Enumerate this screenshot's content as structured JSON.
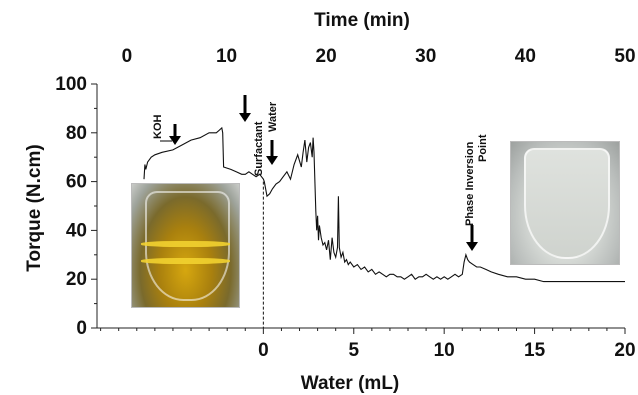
{
  "chart_data": {
    "type": "line",
    "title": "",
    "xlabel": "Water (mL)",
    "ylabel": "Torque (N.cm)",
    "x2label": "Time (min)",
    "xlim": [
      -9.2,
      20
    ],
    "ylim": [
      0,
      100
    ],
    "x2lim": [
      -3,
      50
    ],
    "x_ticks": [
      "0",
      "5",
      "10",
      "15",
      "20"
    ],
    "y_ticks": [
      "0",
      "20",
      "40",
      "60",
      "80",
      "100"
    ],
    "x2_ticks": [
      "0",
      "10",
      "20",
      "30",
      "40",
      "50"
    ],
    "series": [
      {
        "name": "",
        "x": [
          -6.6,
          -6.55,
          -6.5,
          -6.4,
          -6.2,
          -6.0,
          -5.6,
          -5.0,
          -4.5,
          -4.0,
          -3.5,
          -3.0,
          -2.8,
          -2.6,
          -2.45,
          -2.3,
          -2.25,
          -2.2,
          -1.8,
          -1.5,
          -1.2,
          -1.0,
          -0.8,
          -0.6,
          -0.4,
          -0.2,
          -0.1,
          0.0,
          0.05,
          0.1,
          0.2,
          0.35,
          0.5,
          0.7,
          0.9,
          1.1,
          1.3,
          1.5,
          1.7,
          1.9,
          2.1,
          2.2,
          2.3,
          2.4,
          2.5,
          2.6,
          2.7,
          2.75,
          2.8,
          2.85,
          2.9,
          2.95,
          3.0,
          3.05,
          3.1,
          3.2,
          3.3,
          3.4,
          3.5,
          3.6,
          3.7,
          3.8,
          3.9,
          4.0,
          4.1,
          4.15,
          4.2,
          4.3,
          4.4,
          4.5,
          4.6,
          4.7,
          4.8,
          5.0,
          5.2,
          5.4,
          5.6,
          5.8,
          6.0,
          6.2,
          6.4,
          6.6,
          6.8,
          7.0,
          7.2,
          7.4,
          7.6,
          7.8,
          8.0,
          8.2,
          8.4,
          8.6,
          8.8,
          9.0,
          9.2,
          9.4,
          9.6,
          9.8,
          10.0,
          10.2,
          10.4,
          10.6,
          10.8,
          11.0,
          11.1,
          11.2,
          11.3,
          11.4,
          11.6,
          11.8,
          12.0,
          12.3,
          12.6,
          13.0,
          13.5,
          14.0,
          14.5,
          15.0,
          15.5,
          16.0,
          17.0,
          18.0,
          19.0,
          20.0
        ],
        "values": [
          61,
          67,
          65,
          68,
          70,
          71,
          72,
          73,
          75,
          77,
          78,
          80,
          80,
          80,
          81,
          82,
          80,
          66,
          65,
          64,
          63,
          63,
          64,
          63,
          62,
          63,
          62,
          61,
          60,
          58,
          54,
          55,
          57,
          59,
          60,
          62,
          64,
          61,
          67,
          71,
          66,
          72,
          77,
          68,
          74,
          76,
          70,
          78,
          72,
          60,
          48,
          40,
          46,
          36,
          42,
          37,
          34,
          35,
          32,
          36,
          28,
          37,
          31,
          29,
          33,
          54,
          33,
          29,
          31,
          27,
          28,
          26,
          27,
          25,
          26,
          24,
          25,
          23,
          24,
          22,
          23,
          22,
          21,
          22,
          22,
          21,
          21,
          20,
          21,
          22,
          20,
          21,
          21,
          22,
          21,
          20,
          21,
          20,
          21,
          20,
          21,
          22,
          21,
          22,
          27,
          30,
          28,
          27,
          26,
          25,
          25,
          24,
          23,
          22,
          21,
          21,
          20,
          20,
          19,
          19,
          19,
          19,
          19,
          19
        ]
      }
    ],
    "annotations": [
      "KOH",
      "Surfactant",
      "Water",
      "Phase Inversion Point"
    ]
  }
}
